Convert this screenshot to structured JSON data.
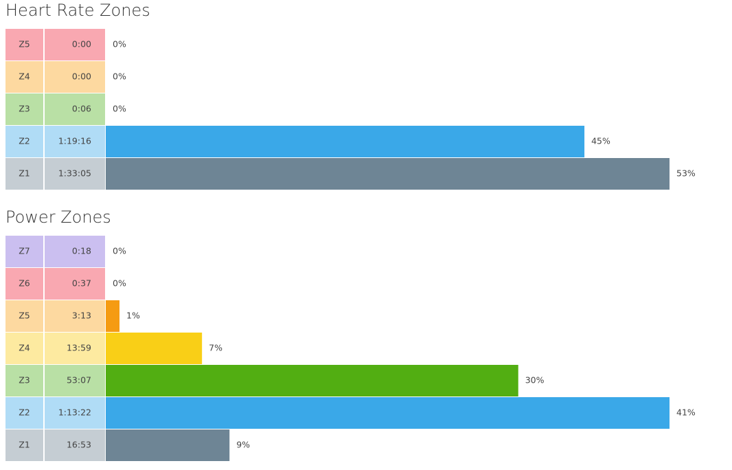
{
  "chart_data": [
    {
      "type": "bar",
      "orientation": "horizontal",
      "title": "Heart Rate Zones",
      "categories": [
        "Z5",
        "Z4",
        "Z3",
        "Z2",
        "Z1"
      ],
      "durations": [
        "0:00",
        "0:00",
        "0:06",
        "1:19:16",
        "1:33:05"
      ],
      "values": [
        0,
        0,
        0,
        45,
        53
      ],
      "value_labels": [
        "0%",
        "0%",
        "0%",
        "45%",
        "53%"
      ],
      "colors": [
        "#f27b8a",
        "#f59b12",
        "#52ae12",
        "#3aa8e8",
        "#6e8595"
      ],
      "cell_colors": [
        "#f9a8b1",
        "#fdd9a0",
        "#b9e0a5",
        "#b0dcf6",
        "#c5cdd3"
      ]
    },
    {
      "type": "bar",
      "orientation": "horizontal",
      "title": "Power Zones",
      "categories": [
        "Z7",
        "Z6",
        "Z5",
        "Z4",
        "Z3",
        "Z2",
        "Z1"
      ],
      "durations": [
        "0:18",
        "0:37",
        "3:13",
        "13:59",
        "53:07",
        "1:13:22",
        "16:53"
      ],
      "values": [
        0,
        0,
        1,
        7,
        30,
        41,
        9
      ],
      "value_labels": [
        "0%",
        "0%",
        "1%",
        "7%",
        "30%",
        "41%",
        "9%"
      ],
      "colors": [
        "#a48de0",
        "#f27b8a",
        "#f59b12",
        "#f9cf17",
        "#52ae12",
        "#3aa8e8",
        "#6e8595"
      ],
      "cell_colors": [
        "#cbbff0",
        "#f9a8b1",
        "#fdd9a0",
        "#fdeaa0",
        "#b9e0a5",
        "#b0dcf6",
        "#c5cdd3"
      ]
    }
  ]
}
